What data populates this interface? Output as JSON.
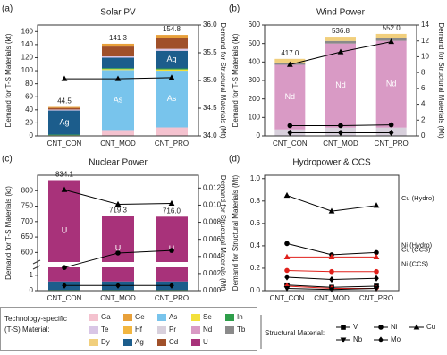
{
  "chart_data": [
    {
      "type": "bar",
      "panel_label": "(a)",
      "title": "Solar PV",
      "ylabel": "Demand for T-S Materials (kt)",
      "y2label": "Demand for Structural Materials (Mt)",
      "categories": [
        "CNT_CON",
        "CNT_MOD",
        "CNT_PRO"
      ],
      "ylim": [
        0,
        170
      ],
      "yticks": [
        0,
        20,
        40,
        60,
        80,
        100,
        120,
        140,
        160
      ],
      "y2lim": [
        34,
        36
      ],
      "y2ticks": [
        {
          "value": 34,
          "label": "34.0"
        },
        {
          "value": 34.5,
          "label": "34.5"
        },
        {
          "value": 35,
          "label": "35.0"
        },
        {
          "value": 35.5,
          "label": "35.5"
        },
        {
          "value": 36,
          "label": "36.0"
        }
      ],
      "series": [
        {
          "name": "Ga",
          "values": [
            0.5,
            9,
            13
          ]
        },
        {
          "name": "As",
          "values": [
            0,
            92,
            87
          ],
          "show_label": true
        },
        {
          "name": "Se",
          "values": [
            0.5,
            1.5,
            2
          ]
        },
        {
          "name": "In",
          "values": [
            1,
            1.5,
            1.5
          ]
        },
        {
          "name": "Ag",
          "values": [
            37,
            16,
            27
          ],
          "show_label": true
        },
        {
          "name": "Te",
          "values": [
            1.5,
            2,
            3
          ]
        },
        {
          "name": "Cd",
          "values": [
            2.5,
            15,
            16
          ]
        },
        {
          "name": "Ge",
          "values": [
            1.5,
            4.3,
            5.3
          ]
        },
        {
          "name": "Cu",
          "axis": "y2",
          "values": [
            35.03,
            35.03,
            35.05
          ]
        }
      ],
      "totals": {
        "values": [
          44.5,
          141.3,
          154.8
        ],
        "value_labels": [
          "44.5",
          "141.3",
          "154.8"
        ]
      }
    },
    {
      "type": "bar",
      "panel_label": "(b)",
      "title": "Wind Power",
      "ylabel": "Demand for T-S Materials (kt)",
      "y2label": "Demand for Structural Materials (Mt)",
      "categories": [
        "CNT_CON",
        "CNT_MOD",
        "CNT_PRO"
      ],
      "ylim": [
        0,
        600
      ],
      "yticks": [
        0,
        100,
        200,
        300,
        400,
        500,
        600
      ],
      "y2lim": [
        0,
        14
      ],
      "y2ticks": [
        0,
        2,
        4,
        6,
        8,
        10,
        12,
        14
      ],
      "series": [
        {
          "name": "Pr",
          "values": [
            35,
            45,
            45
          ]
        },
        {
          "name": "Nd",
          "values": [
            350,
            455,
            470
          ],
          "show_label": true
        },
        {
          "name": "Tb",
          "values": [
            12,
            14,
            14
          ]
        },
        {
          "name": "Dy",
          "values": [
            20,
            22.8,
            23
          ]
        },
        {
          "name": "Cu",
          "axis": "y2",
          "values": [
            9.0,
            10.6,
            11.9
          ]
        },
        {
          "name": "Ni",
          "axis": "y2",
          "values": [
            1.3,
            1.3,
            1.4
          ]
        },
        {
          "name": "Mo",
          "axis": "y2",
          "values": [
            0.4,
            0.4,
            0.4
          ]
        }
      ],
      "totals": {
        "values": [
          417.0,
          536.8,
          552.0
        ],
        "value_labels": [
          "417.0",
          "536.8",
          "552.0"
        ]
      }
    },
    {
      "type": "bar",
      "panel_label": "(c)",
      "title": "Nuclear Power",
      "ylabel": "Demand for T-S Materials (kt)",
      "y2label": "Demand for Structural Materials (Mt)",
      "categories": [
        "CNT_CON",
        "CNT_MOD",
        "CNT_PRO"
      ],
      "ylim": [
        0,
        850
      ],
      "ybreak": [
        1.4,
        575
      ],
      "yticks": [
        0,
        1,
        600,
        650,
        700,
        750,
        800
      ],
      "y2lim": [
        0,
        0.0135
      ],
      "y2ticks": [
        {
          "value": 0,
          "label": "0.000"
        },
        {
          "value": 0.002,
          "label": "0.002"
        },
        {
          "value": 0.004,
          "label": "0.004"
        },
        {
          "value": 0.006,
          "label": "0.006"
        },
        {
          "value": 0.008,
          "label": "0.008"
        },
        {
          "value": 0.01,
          "label": "0.010"
        },
        {
          "value": 0.012,
          "label": "0.012"
        }
      ],
      "series": [
        {
          "name": "In",
          "values": [
            0.05,
            0.05,
            0.05
          ]
        },
        {
          "name": "Ag",
          "values": [
            0.55,
            0.55,
            0.55
          ]
        },
        {
          "name": "U",
          "values": [
            833.5,
            718.7,
            715.4
          ],
          "show_label": true
        },
        {
          "name": "Cu",
          "axis": "y2",
          "values": [
            0.0118,
            0.0101,
            0.0102
          ]
        },
        {
          "name": "Ni",
          "axis": "y2",
          "values": [
            0.0027,
            0.0044,
            0.0047
          ]
        },
        {
          "name": "Mo",
          "axis": "y2",
          "values": [
            0.0006,
            0.0006,
            0.0006
          ]
        }
      ],
      "totals": {
        "values": [
          834.1,
          719.3,
          716.0
        ],
        "value_labels": [
          "834.1",
          "719.3",
          "716.0"
        ]
      }
    },
    {
      "type": "line",
      "panel_label": "(d)",
      "title": "Hydropower & CCS",
      "ylabel": "Demand for Structural Materials (Mt)",
      "categories": [
        "CNT_CON",
        "CNT_MOD",
        "CNT_PRO"
      ],
      "ylim": [
        0,
        1.03
      ],
      "yticks": [
        {
          "value": 0,
          "label": "0.0"
        },
        {
          "value": 0.2,
          "label": "0.2"
        },
        {
          "value": 0.4,
          "label": "0.4"
        },
        {
          "value": 0.6,
          "label": "0.6"
        },
        {
          "value": 0.8,
          "label": "0.8"
        },
        {
          "value": 1,
          "label": "1.0"
        }
      ],
      "series": [
        {
          "name": "Cu (Hydro)",
          "marker": "triangle",
          "color": "#000000",
          "values": [
            0.85,
            0.71,
            0.76
          ]
        },
        {
          "name": "Ni (Hydro)",
          "marker": "circle",
          "color": "#000000",
          "values": [
            0.42,
            0.32,
            0.34
          ]
        },
        {
          "name": "Cu (CCS)",
          "marker": "triangle",
          "color": "#e0201b",
          "values": [
            0.3,
            0.3,
            0.3
          ]
        },
        {
          "name": "Ni (CCS)",
          "marker": "circle",
          "color": "#e0201b",
          "values": [
            0.18,
            0.17,
            0.17
          ]
        },
        {
          "marker": "diamond",
          "color": "#000000",
          "values": [
            0.12,
            0.1,
            0.11
          ]
        },
        {
          "marker": "square",
          "color": "#000000",
          "values": [
            0.05,
            0.03,
            0.04
          ]
        },
        {
          "marker": "diamond",
          "color": "#e0201b",
          "values": [
            0.04,
            0.02,
            0.02
          ]
        },
        {
          "marker": "triangle-down",
          "color": "#000000",
          "values": [
            0.02,
            0.01,
            0.02
          ]
        }
      ]
    }
  ],
  "legend": {
    "materials": {
      "title": [
        "Technology-specific",
        "(T-S) Material:"
      ],
      "items": [
        {
          "name": "Ga",
          "color": "#f4c2cf"
        },
        {
          "name": "Ge",
          "color": "#e8a03a"
        },
        {
          "name": "As",
          "color": "#78c4ec"
        },
        {
          "name": "Se",
          "color": "#f3e03b"
        },
        {
          "name": "In",
          "color": "#2e9e4a"
        },
        {
          "name": "Te",
          "color": "#d9c6e6"
        },
        {
          "name": "Hf",
          "color": "#f2b640"
        },
        {
          "name": "Pr",
          "color": "#d8d0dc"
        },
        {
          "name": "Nd",
          "color": "#d99ac5"
        },
        {
          "name": "Tb",
          "color": "#8a8a8a"
        },
        {
          "name": "Dy",
          "color": "#f1cf7d"
        },
        {
          "name": "Ag",
          "color": "#1c5d8c"
        },
        {
          "name": "Cd",
          "color": "#a0502a"
        },
        {
          "name": "U",
          "color": "#a8327a"
        }
      ]
    },
    "structural": {
      "title": "Structural Material:",
      "items": [
        {
          "name": "V",
          "marker": "square",
          "color": "#000000"
        },
        {
          "name": "Ni",
          "marker": "circle",
          "color": "#000000"
        },
        {
          "name": "Cu",
          "marker": "triangle",
          "color": "#000000"
        },
        {
          "name": "Nb",
          "marker": "triangle-down",
          "color": "#000000"
        },
        {
          "name": "Mo",
          "marker": "diamond",
          "color": "#000000"
        }
      ]
    }
  }
}
